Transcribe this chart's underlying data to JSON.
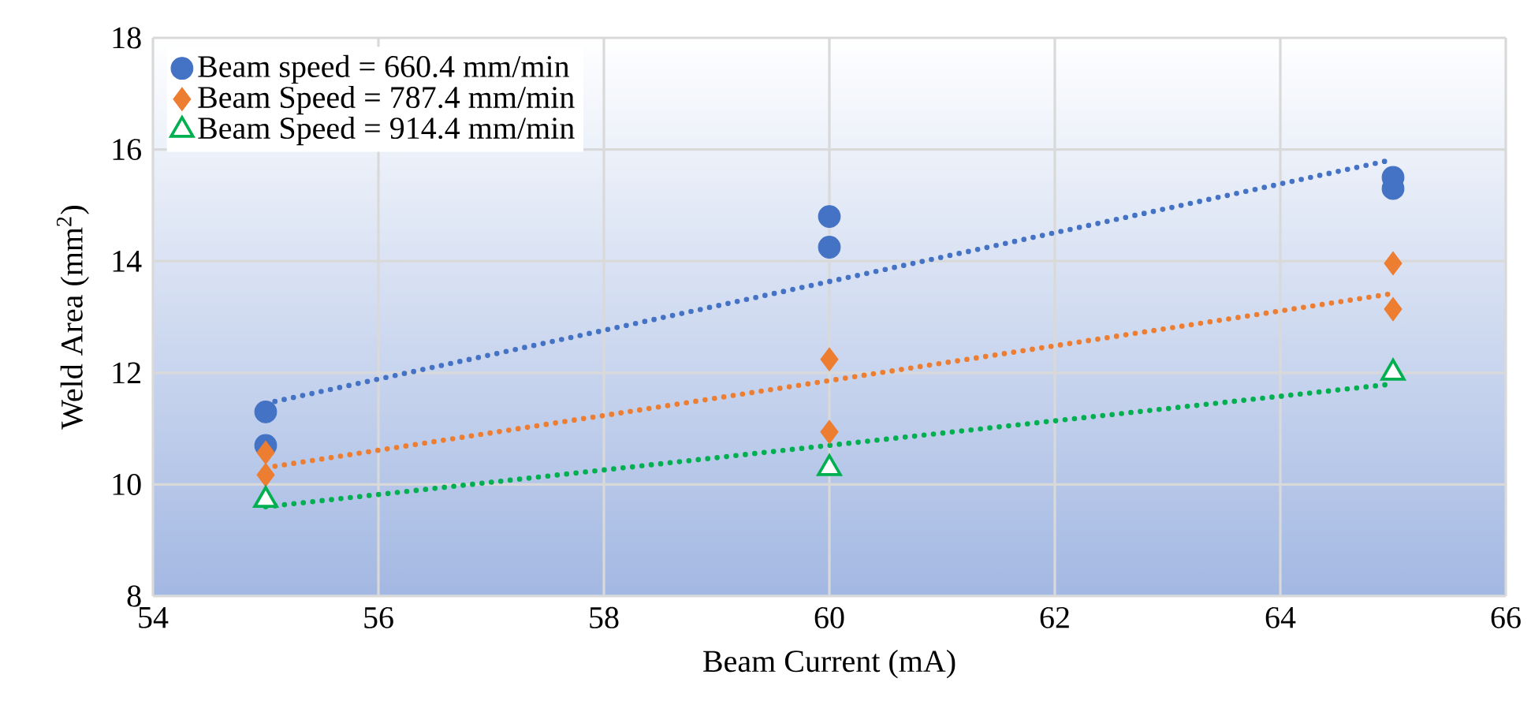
{
  "chart_data": {
    "type": "scatter",
    "xlabel": "Beam Current (mA)",
    "ylabel": "Weld Area (mm$^{2}$)",
    "xlim": [
      54,
      66
    ],
    "xticks": [
      54,
      56,
      58,
      60,
      62,
      64,
      66
    ],
    "ylim": [
      8,
      18
    ],
    "yticks": [
      8,
      10,
      12,
      14,
      16,
      18
    ],
    "grid": true,
    "legend": "top left",
    "series": [
      {
        "name": "Beam speed = 660.4 mm/min",
        "color": "#4472c4",
        "marker": "circle",
        "x": [
          55,
          55,
          60,
          60,
          65,
          65
        ],
        "values": [
          11.3,
          10.7,
          14.8,
          14.25,
          15.5,
          15.3
        ]
      },
      {
        "name": "Beam Speed = 787.4 mm/min",
        "color": "#ed7d31",
        "marker": "diamond",
        "x": [
          55,
          55,
          60,
          60,
          65,
          65
        ],
        "values": [
          10.57,
          10.17,
          12.24,
          10.94,
          13.96,
          13.14
        ]
      },
      {
        "name": "Beam Speed = 914.4 mm/min",
        "color": "#00b050",
        "marker": "triangle",
        "x": [
          55,
          60,
          65
        ],
        "values": [
          9.72,
          10.29,
          12.0
        ]
      },
      {
        "type": "line",
        "line_style": "dotted",
        "marker": "none",
        "color": "#4472c4",
        "x": [
          55,
          65
        ],
        "values": [
          11.45,
          15.82
        ]
      },
      {
        "type": "line",
        "line_style": "dotted",
        "marker": "none",
        "color": "#ed7d31",
        "x": [
          55,
          65
        ],
        "values": [
          10.3,
          13.42
        ]
      },
      {
        "type": "line",
        "line_style": "dotted",
        "marker": "none",
        "color": "#00b050",
        "x": [
          55,
          65
        ],
        "values": [
          9.6,
          11.8
        ]
      }
    ]
  }
}
